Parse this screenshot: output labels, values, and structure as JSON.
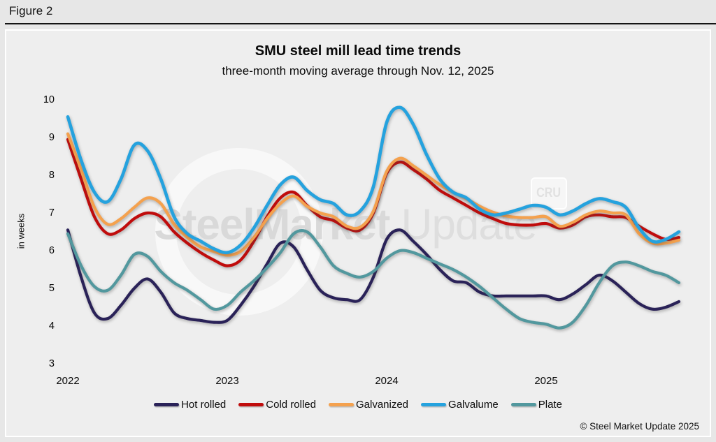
{
  "figure_label": "Figure 2",
  "header": {
    "title": "SMU steel mill lead time trends",
    "subtitle": "three-month moving average through Nov. 12, 2025"
  },
  "watermark": {
    "bold": "SteelMarket",
    "light": " Update",
    "cru": "CRU"
  },
  "footer": {
    "copyright": "© Steel Market Update 2025"
  },
  "chart_data": {
    "type": "line",
    "title": "SMU steel mill lead time trends",
    "subtitle": "three-month moving average through Nov. 12, 2025",
    "ylabel": "in weeks",
    "ylim": [
      3,
      10
    ],
    "yticks": [
      10,
      9,
      8,
      7,
      6,
      5,
      4,
      3
    ],
    "xticks": [
      "2022",
      "2023",
      "2024",
      "2025"
    ],
    "x_monthly_start": "2022-01",
    "x_monthly_end": "2025-11",
    "grid": false,
    "legend_position": "bottom",
    "series": [
      {
        "name": "Hot rolled",
        "color": "#2a2258",
        "values": [
          6.55,
          5.3,
          4.35,
          4.2,
          4.55,
          5.0,
          5.25,
          4.9,
          4.35,
          4.2,
          4.15,
          4.1,
          4.15,
          4.55,
          5.05,
          5.65,
          6.2,
          6.1,
          5.5,
          4.95,
          4.75,
          4.7,
          4.7,
          5.3,
          6.3,
          6.55,
          6.25,
          5.9,
          5.5,
          5.2,
          5.15,
          4.9,
          4.8,
          4.8,
          4.8,
          4.8,
          4.8,
          4.7,
          4.85,
          5.1,
          5.35,
          5.2,
          4.9,
          4.6,
          4.45,
          4.5,
          4.65
        ]
      },
      {
        "name": "Cold rolled",
        "color": "#c00c0c",
        "values": [
          8.95,
          7.9,
          6.9,
          6.45,
          6.55,
          6.85,
          7.0,
          6.9,
          6.5,
          6.2,
          5.95,
          5.75,
          5.6,
          5.75,
          6.25,
          6.9,
          7.4,
          7.55,
          7.2,
          6.9,
          6.8,
          6.6,
          6.55,
          7.0,
          8.05,
          8.35,
          8.15,
          7.9,
          7.6,
          7.4,
          7.2,
          7.0,
          6.85,
          6.72,
          6.68,
          6.68,
          6.72,
          6.6,
          6.68,
          6.9,
          6.95,
          6.9,
          6.88,
          6.65,
          6.45,
          6.3,
          6.35
        ]
      },
      {
        "name": "Galvanized",
        "color": "#f4a14e",
        "values": [
          9.1,
          8.15,
          7.15,
          6.7,
          6.85,
          7.15,
          7.4,
          7.25,
          6.7,
          6.35,
          6.1,
          5.98,
          5.88,
          5.98,
          6.35,
          6.85,
          7.25,
          7.45,
          7.18,
          7.0,
          6.9,
          6.65,
          6.62,
          7.05,
          8.1,
          8.45,
          8.25,
          8.0,
          7.75,
          7.55,
          7.38,
          7.18,
          7.02,
          6.92,
          6.88,
          6.88,
          6.9,
          6.65,
          6.75,
          6.95,
          7.05,
          7.0,
          6.95,
          6.45,
          6.2,
          6.2,
          6.28
        ]
      },
      {
        "name": "Galvalume",
        "color": "#25a2de",
        "values": [
          9.55,
          8.4,
          7.55,
          7.3,
          7.9,
          8.8,
          8.65,
          7.9,
          6.9,
          6.45,
          6.25,
          6.05,
          5.95,
          6.15,
          6.6,
          7.2,
          7.75,
          7.95,
          7.6,
          7.35,
          7.25,
          6.95,
          7.05,
          7.7,
          9.4,
          9.8,
          9.35,
          8.55,
          7.9,
          7.55,
          7.4,
          7.1,
          6.95,
          7.0,
          7.1,
          7.2,
          7.15,
          6.95,
          7.05,
          7.25,
          7.38,
          7.3,
          7.15,
          6.6,
          6.25,
          6.3,
          6.5
        ]
      },
      {
        "name": "Plate",
        "color": "#52989e",
        "values": [
          6.45,
          5.6,
          5.05,
          4.95,
          5.35,
          5.9,
          5.85,
          5.45,
          5.15,
          4.95,
          4.7,
          4.45,
          4.55,
          4.9,
          5.2,
          5.55,
          5.95,
          6.45,
          6.5,
          6.1,
          5.6,
          5.4,
          5.3,
          5.45,
          5.8,
          6.0,
          5.95,
          5.8,
          5.65,
          5.5,
          5.3,
          5.05,
          4.75,
          4.45,
          4.2,
          4.1,
          4.05,
          3.95,
          4.1,
          4.55,
          5.15,
          5.6,
          5.7,
          5.6,
          5.45,
          5.35,
          5.15
        ]
      }
    ]
  }
}
